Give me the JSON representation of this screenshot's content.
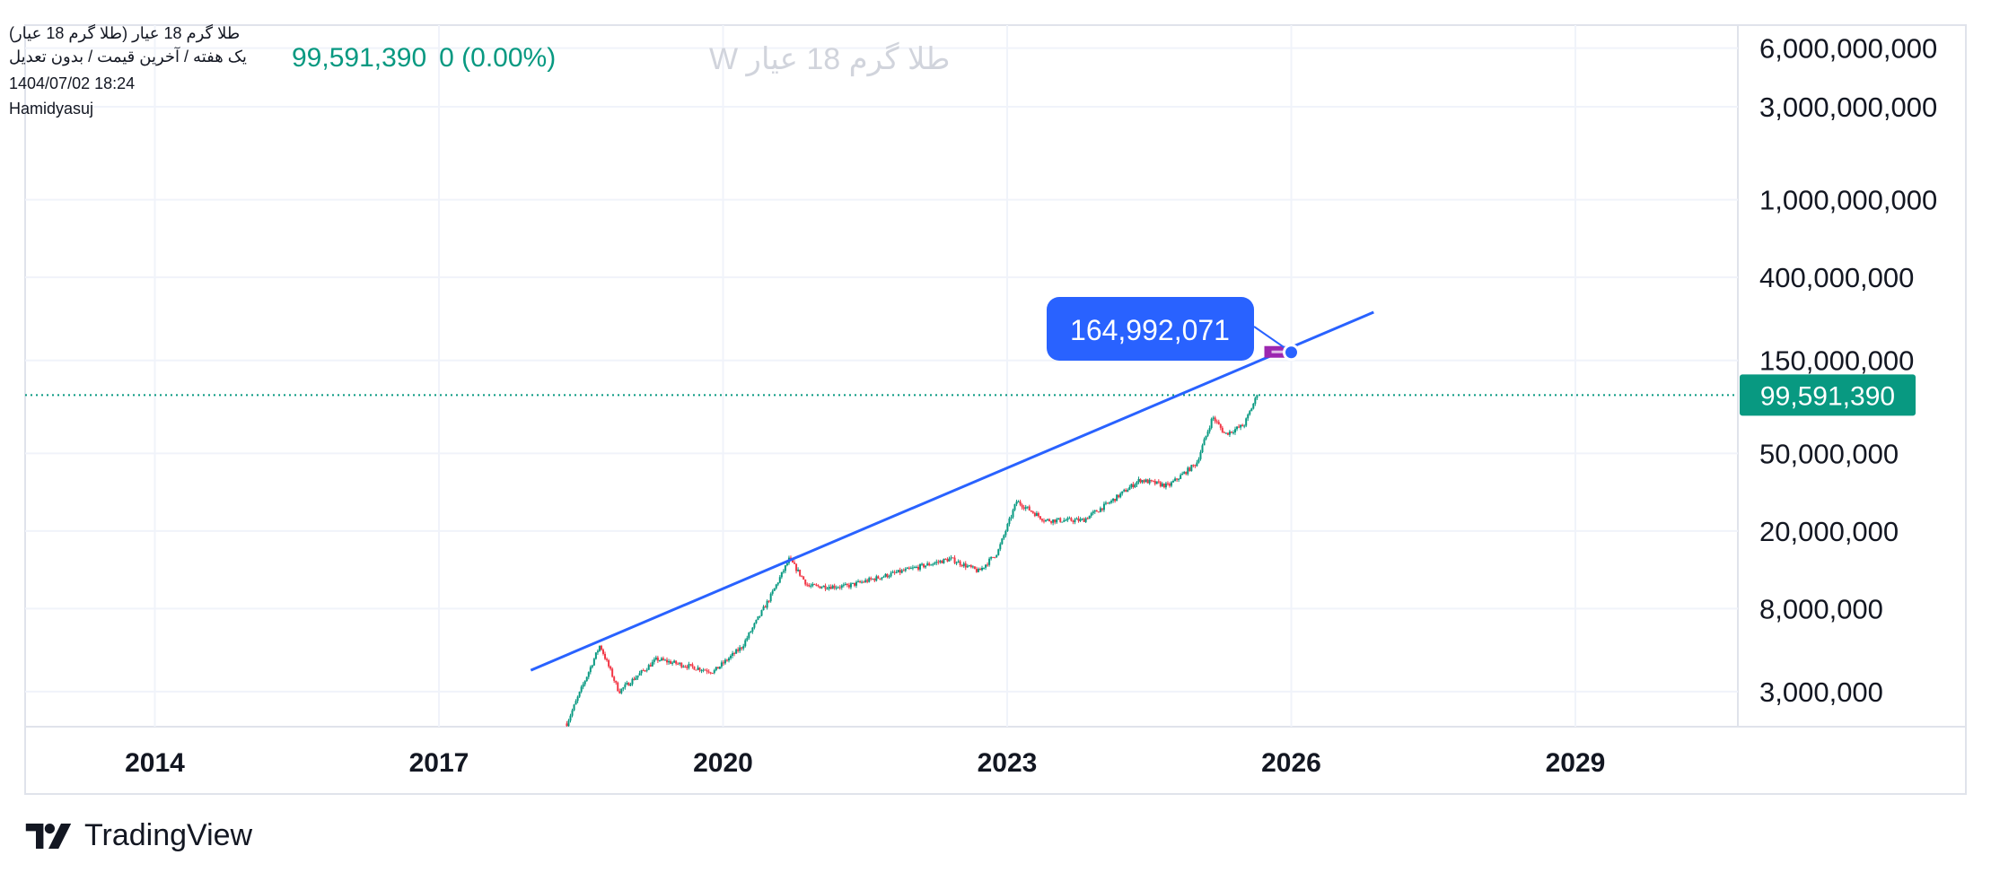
{
  "header": {
    "symbol_title": "طلا گرم 18 عیار (طلا گرم 18 عیار)",
    "subtitle": "یک هفته / آخرین قیمت / بدون تعدیل",
    "ghost_text": "طلا گرم 18 عیار W",
    "last_price": "99,591,390",
    "change": "0 (0.00%)",
    "datetime": "1404/07/02 18:24",
    "author": "Hamidyasuj"
  },
  "colors": {
    "up": "#089981",
    "down": "#f23645",
    "trendline": "#2962ff",
    "callout": "#2962ff",
    "marker": "#9c27b0"
  },
  "branding": {
    "logo_text": "TradingView"
  },
  "chart_data": {
    "type": "candlestick",
    "title": "طلا گرم 18 عیار",
    "interval": "1W",
    "scale": "log",
    "ylim": [
      2000000,
      7000000000
    ],
    "xlim": [
      2012.5,
      2031.2
    ],
    "y_ticks": [
      {
        "value": 6000000000,
        "label": "6,000,000,000"
      },
      {
        "value": 3000000000,
        "label": "3,000,000,000"
      },
      {
        "value": 1000000000,
        "label": "1,000,000,000"
      },
      {
        "value": 400000000,
        "label": "400,000,000"
      },
      {
        "value": 150000000,
        "label": "150,000,000"
      },
      {
        "value": 50000000,
        "label": "50,000,000"
      },
      {
        "value": 20000000,
        "label": "20,000,000"
      },
      {
        "value": 8000000,
        "label": "8,000,000"
      },
      {
        "value": 3000000,
        "label": "3,000,000"
      }
    ],
    "x_ticks": [
      {
        "value": 2014,
        "label": "2014"
      },
      {
        "value": 2017,
        "label": "2017"
      },
      {
        "value": 2020,
        "label": "2020"
      },
      {
        "value": 2023,
        "label": "2023"
      },
      {
        "value": 2026,
        "label": "2026"
      },
      {
        "value": 2029,
        "label": "2029"
      }
    ],
    "price_path": [
      [
        2018.35,
        2060000
      ],
      [
        2018.7,
        5200000
      ],
      [
        2018.9,
        3000000
      ],
      [
        2019.3,
        4400000
      ],
      [
        2019.9,
        3800000
      ],
      [
        2020.2,
        5100000
      ],
      [
        2020.5,
        9200000
      ],
      [
        2020.7,
        14400000
      ],
      [
        2020.9,
        10400000
      ],
      [
        2021.3,
        10400000
      ],
      [
        2021.8,
        12100000
      ],
      [
        2022.4,
        14400000
      ],
      [
        2022.7,
        12400000
      ],
      [
        2022.9,
        15600000
      ],
      [
        2023.1,
        28400000
      ],
      [
        2023.4,
        22700000
      ],
      [
        2023.8,
        22700000
      ],
      [
        2024.1,
        28400000
      ],
      [
        2024.4,
        36600000
      ],
      [
        2024.7,
        34000000
      ],
      [
        2025.0,
        44600000
      ],
      [
        2025.17,
        77000000
      ],
      [
        2025.3,
        62800000
      ],
      [
        2025.5,
        69800000
      ],
      [
        2025.64,
        99591390
      ]
    ],
    "last_price": {
      "value": 99591390,
      "label": "99,591,390"
    },
    "trendline": {
      "start": [
        2017.97,
        3860000
      ],
      "end": [
        2026.87,
        265000000
      ]
    },
    "callout": {
      "x": 2026.0,
      "value": 164992071,
      "label": "164,992,071"
    }
  }
}
